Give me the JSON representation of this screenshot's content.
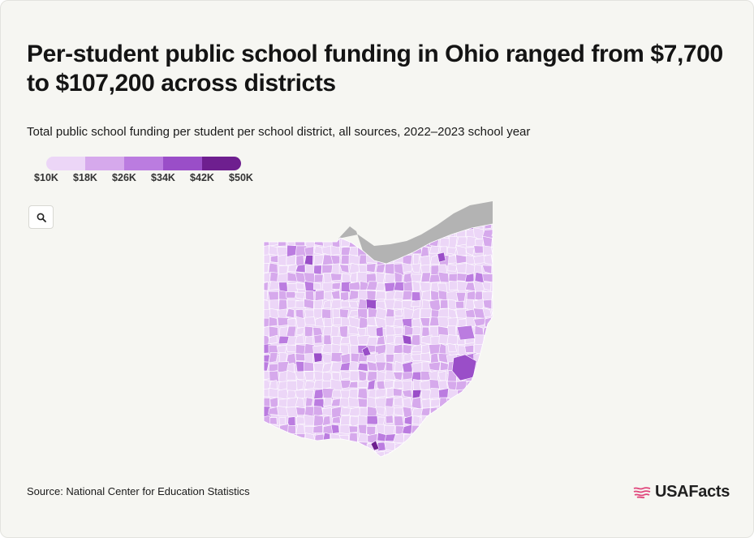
{
  "header": {
    "title": "Per-student public school funding in Ohio ranged from $7,700 to $107,200 across districts",
    "subtitle": "Total public school funding per student per school district, all sources, 2022–2023 school year"
  },
  "legend": {
    "labels": [
      "$10K",
      "$18K",
      "$26K",
      "$34K",
      "$42K",
      "$50K"
    ],
    "colors": [
      "#ecd6f7",
      "#d6a9ec",
      "#bb7ce0",
      "#9a4ec8",
      "#6e1f8f"
    ]
  },
  "map": {
    "region": "Ohio",
    "lake_color": "#b3b3b3",
    "search_icon": "search-icon"
  },
  "footer": {
    "source": "Source: National Center for Education Statistics",
    "logo_text": "USAFacts",
    "logo_icon": "usa-flag-icon",
    "logo_color": "#e0457b"
  }
}
